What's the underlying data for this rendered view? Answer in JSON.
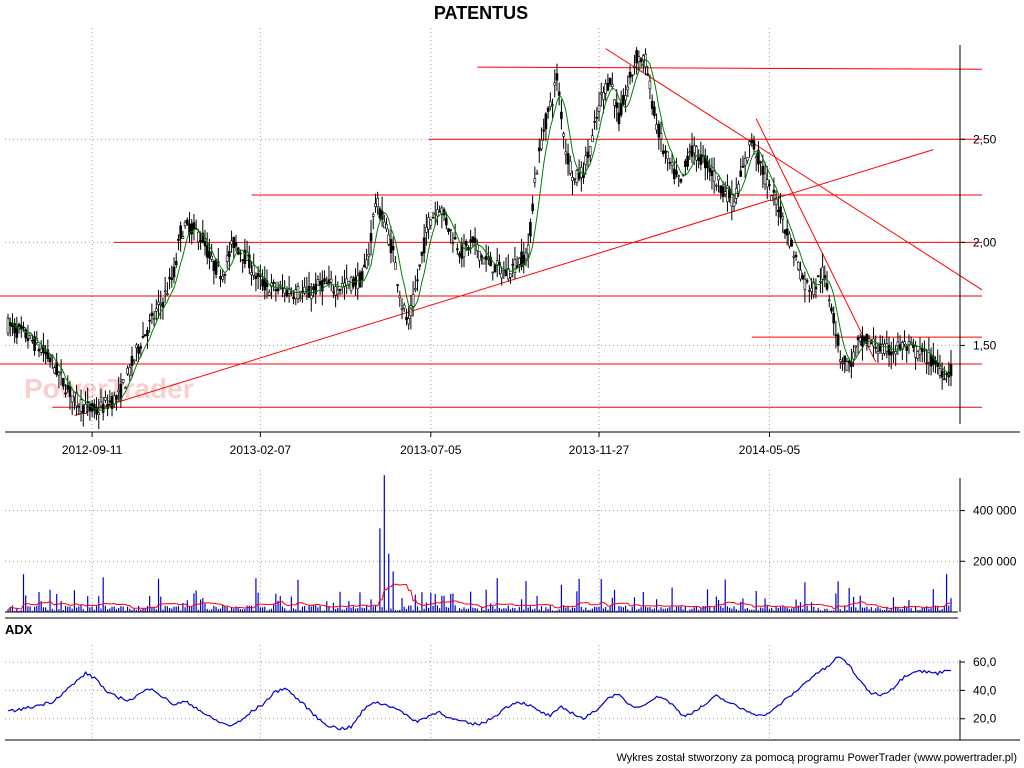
{
  "title": "PATENTUS",
  "watermark": "PowerTrader",
  "footer": "Wykres został stworzony za pomocą programu PowerTrader (www.powertrader.pl)",
  "colors": {
    "price": "#000000",
    "price_ma": "#008000",
    "lines": "#ff0000",
    "volume": "#0000cc",
    "volume_ma": "#ff0000",
    "adx": "#0000cc"
  },
  "chart_data": [
    {
      "type": "candlestick",
      "title": "PATENTUS",
      "x_ticks": [
        "2012-09-11",
        "2013-02-07",
        "2013-07-05",
        "2013-11-27",
        "2014-05-05"
      ],
      "y_ticks": [
        "1,50",
        "2,00",
        "2,50"
      ],
      "ylim": [
        1.08,
        3.04
      ],
      "grid": true,
      "price_path": [
        [
          0,
          1.6
        ],
        [
          8,
          1.55
        ],
        [
          15,
          1.48
        ],
        [
          20,
          1.42
        ],
        [
          25,
          1.32
        ],
        [
          30,
          1.24
        ],
        [
          35,
          1.2
        ],
        [
          40,
          1.18
        ],
        [
          45,
          1.22
        ],
        [
          50,
          1.25
        ],
        [
          55,
          1.38
        ],
        [
          60,
          1.52
        ],
        [
          65,
          1.62
        ],
        [
          70,
          1.72
        ],
        [
          75,
          1.85
        ],
        [
          78,
          2.05
        ],
        [
          82,
          2.08
        ],
        [
          88,
          2.02
        ],
        [
          92,
          1.9
        ],
        [
          97,
          1.85
        ],
        [
          102,
          2.0
        ],
        [
          108,
          1.92
        ],
        [
          113,
          1.82
        ],
        [
          118,
          1.78
        ],
        [
          124,
          1.77
        ],
        [
          130,
          1.76
        ],
        [
          136,
          1.75
        ],
        [
          142,
          1.8
        ],
        [
          148,
          1.78
        ],
        [
          154,
          1.8
        ],
        [
          160,
          1.82
        ],
        [
          163,
          1.95
        ],
        [
          166,
          2.2
        ],
        [
          170,
          2.1
        ],
        [
          174,
          1.95
        ],
        [
          178,
          1.7
        ],
        [
          181,
          1.6
        ],
        [
          185,
          1.82
        ],
        [
          190,
          2.1
        ],
        [
          195,
          2.18
        ],
        [
          200,
          2.05
        ],
        [
          205,
          1.95
        ],
        [
          210,
          2.0
        ],
        [
          215,
          1.92
        ],
        [
          220,
          1.88
        ],
        [
          225,
          1.85
        ],
        [
          230,
          1.9
        ],
        [
          235,
          1.95
        ],
        [
          238,
          2.3
        ],
        [
          242,
          2.55
        ],
        [
          246,
          2.7
        ],
        [
          248,
          2.8
        ],
        [
          252,
          2.45
        ],
        [
          256,
          2.3
        ],
        [
          260,
          2.35
        ],
        [
          264,
          2.5
        ],
        [
          268,
          2.7
        ],
        [
          272,
          2.8
        ],
        [
          276,
          2.6
        ],
        [
          280,
          2.75
        ],
        [
          284,
          2.9
        ],
        [
          288,
          2.88
        ],
        [
          292,
          2.62
        ],
        [
          296,
          2.45
        ],
        [
          300,
          2.35
        ],
        [
          304,
          2.28
        ],
        [
          308,
          2.45
        ],
        [
          312,
          2.42
        ],
        [
          316,
          2.38
        ],
        [
          320,
          2.3
        ],
        [
          324,
          2.25
        ],
        [
          328,
          2.2
        ],
        [
          332,
          2.35
        ],
        [
          336,
          2.5
        ],
        [
          340,
          2.38
        ],
        [
          344,
          2.25
        ],
        [
          348,
          2.18
        ],
        [
          352,
          2.05
        ],
        [
          356,
          1.92
        ],
        [
          360,
          1.8
        ],
        [
          364,
          1.78
        ],
        [
          368,
          1.85
        ],
        [
          372,
          1.7
        ],
        [
          376,
          1.45
        ],
        [
          380,
          1.4
        ],
        [
          384,
          1.5
        ],
        [
          388,
          1.52
        ],
        [
          392,
          1.5
        ],
        [
          396,
          1.47
        ],
        [
          400,
          1.48
        ],
        [
          404,
          1.5
        ],
        [
          408,
          1.48
        ],
        [
          412,
          1.46
        ],
        [
          416,
          1.44
        ],
        [
          420,
          1.4
        ],
        [
          424,
          1.36
        ],
        [
          426,
          1.38
        ]
      ],
      "trend_lines": [
        {
          "x1": -10,
          "y1": 1.74,
          "x2": 440,
          "y2": 1.74
        },
        {
          "x1": -10,
          "y1": 1.41,
          "x2": 440,
          "y2": 1.41
        },
        {
          "x1": 20,
          "y1": 1.2,
          "x2": 440,
          "y2": 1.2
        },
        {
          "x1": 48,
          "y1": 2.0,
          "x2": 440,
          "y2": 2.0
        },
        {
          "x1": 110,
          "y1": 2.23,
          "x2": 440,
          "y2": 2.23
        },
        {
          "x1": 190,
          "y1": 2.5,
          "x2": 440,
          "y2": 2.5
        },
        {
          "x1": 212,
          "y1": 2.85,
          "x2": 440,
          "y2": 2.84
        },
        {
          "x1": 336,
          "y1": 1.54,
          "x2": 440,
          "y2": 1.54
        },
        {
          "x1": 30,
          "y1": 1.16,
          "x2": 418,
          "y2": 2.45
        },
        {
          "x1": 270,
          "y1": 2.94,
          "x2": 440,
          "y2": 1.77
        },
        {
          "x1": 338,
          "y1": 2.6,
          "x2": 392,
          "y2": 1.42
        }
      ]
    },
    {
      "type": "bar",
      "title": "",
      "y_ticks": [
        "200 000",
        "400 000"
      ],
      "ylim": [
        0,
        560000
      ],
      "series": [
        {
          "values": "volume"
        }
      ]
    },
    {
      "type": "line",
      "title": "ADX",
      "y_ticks": [
        "20,0",
        "40,0",
        "60,0"
      ],
      "ylim": [
        5,
        72
      ],
      "series": [
        {
          "values": [
            [
              0,
              25
            ],
            [
              10,
              28
            ],
            [
              20,
              32
            ],
            [
              30,
              45
            ],
            [
              35,
              52
            ],
            [
              40,
              48
            ],
            [
              45,
              38
            ],
            [
              50,
              35
            ],
            [
              55,
              33
            ],
            [
              60,
              38
            ],
            [
              65,
              42
            ],
            [
              70,
              35
            ],
            [
              75,
              30
            ],
            [
              80,
              32
            ],
            [
              85,
              28
            ],
            [
              90,
              22
            ],
            [
              95,
              18
            ],
            [
              100,
              15
            ],
            [
              105,
              18
            ],
            [
              110,
              25
            ],
            [
              115,
              30
            ],
            [
              120,
              38
            ],
            [
              125,
              42
            ],
            [
              130,
              35
            ],
            [
              135,
              28
            ],
            [
              140,
              20
            ],
            [
              145,
              15
            ],
            [
              150,
              13
            ],
            [
              155,
              14
            ],
            [
              160,
              25
            ],
            [
              165,
              32
            ],
            [
              170,
              30
            ],
            [
              175,
              28
            ],
            [
              180,
              22
            ],
            [
              185,
              18
            ],
            [
              190,
              22
            ],
            [
              195,
              25
            ],
            [
              200,
              20
            ],
            [
              205,
              18
            ],
            [
              210,
              16
            ],
            [
              215,
              17
            ],
            [
              220,
              22
            ],
            [
              225,
              28
            ],
            [
              230,
              32
            ],
            [
              235,
              30
            ],
            [
              240,
              25
            ],
            [
              245,
              22
            ],
            [
              250,
              28
            ],
            [
              255,
              24
            ],
            [
              260,
              20
            ],
            [
              265,
              25
            ],
            [
              270,
              33
            ],
            [
              275,
              38
            ],
            [
              280,
              30
            ],
            [
              285,
              28
            ],
            [
              290,
              33
            ],
            [
              295,
              36
            ],
            [
              300,
              30
            ],
            [
              305,
              22
            ],
            [
              310,
              25
            ],
            [
              315,
              30
            ],
            [
              320,
              36
            ],
            [
              325,
              32
            ],
            [
              330,
              28
            ],
            [
              335,
              25
            ],
            [
              340,
              22
            ],
            [
              345,
              25
            ],
            [
              350,
              32
            ],
            [
              355,
              38
            ],
            [
              360,
              45
            ],
            [
              365,
              52
            ],
            [
              370,
              56
            ],
            [
              375,
              64
            ],
            [
              380,
              58
            ],
            [
              385,
              46
            ],
            [
              390,
              38
            ],
            [
              395,
              37
            ],
            [
              400,
              42
            ],
            [
              405,
              50
            ],
            [
              410,
              54
            ],
            [
              415,
              53
            ],
            [
              420,
              52
            ],
            [
              425,
              55
            ]
          ]
        }
      ]
    }
  ]
}
